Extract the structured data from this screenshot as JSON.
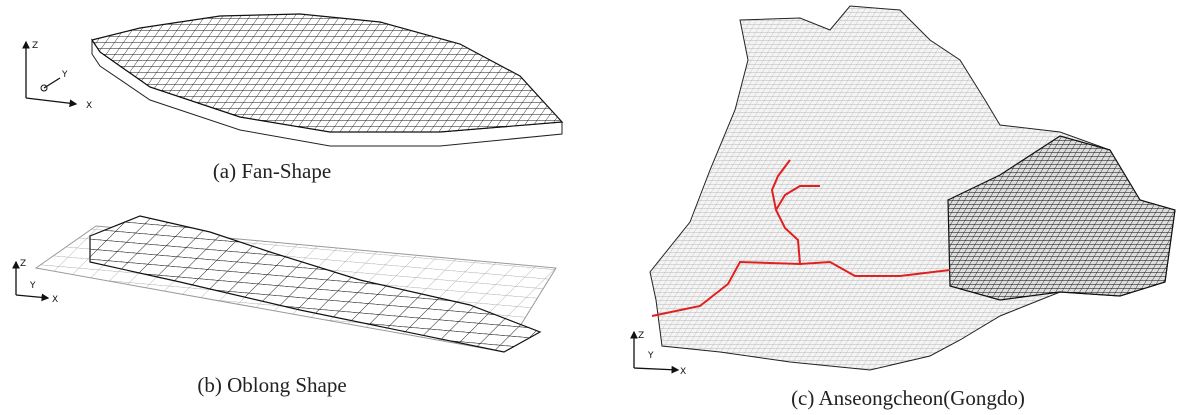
{
  "panels": [
    {
      "caption": "(a) Fan-Shape",
      "axes": [
        "Z",
        "Y",
        "X"
      ]
    },
    {
      "caption": "(b) Oblong Shape",
      "axes": [
        "Z",
        "Y",
        "X"
      ]
    },
    {
      "caption": "(c) Anseongcheon(Gongdo)",
      "axes": [
        "Z",
        "Y",
        "X"
      ]
    }
  ]
}
